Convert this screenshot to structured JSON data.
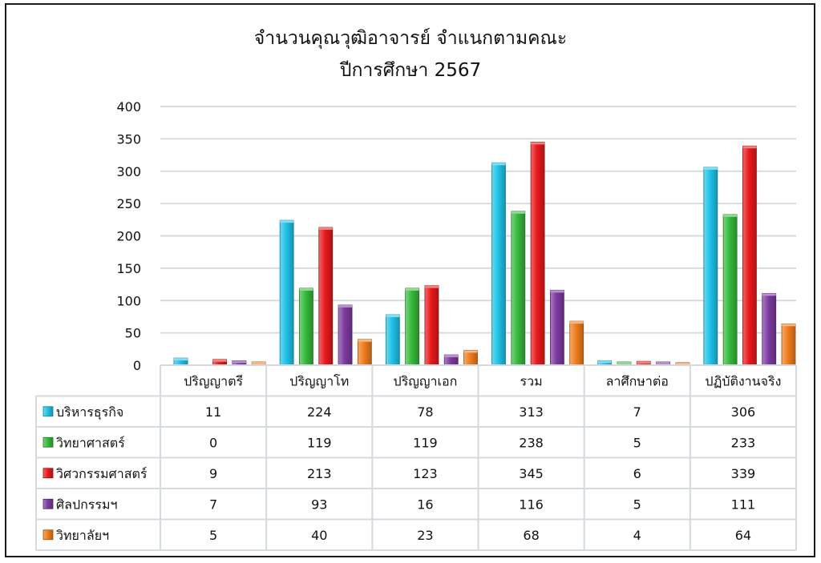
{
  "chart_data": {
    "type": "bar",
    "title": "จำนวนคุณวุฒิอาจารย์ จำแนกตามคณะ",
    "subtitle": "ปีการศึกษา 2567",
    "categories": [
      "ปริญญาตรี",
      "ปริญญาโท",
      "ปริญญาเอก",
      "รวม",
      "ลาศึกษาต่อ",
      "ปฏิบัติงานจริง"
    ],
    "ylim": [
      0,
      400
    ],
    "yticks": [
      0,
      50,
      100,
      150,
      200,
      250,
      300,
      350,
      400
    ],
    "grid": true,
    "legend": "data-table",
    "series": [
      {
        "name": "บริหารธุรกิจ",
        "color": "#1fc3e8",
        "values": [
          11,
          224,
          78,
          313,
          7,
          306
        ]
      },
      {
        "name": "วิทยาศาสตร์",
        "color": "#35b93b",
        "values": [
          0,
          119,
          119,
          238,
          5,
          233
        ]
      },
      {
        "name": "วิศวกรรมศาสตร์",
        "color": "#e8191c",
        "values": [
          9,
          213,
          123,
          345,
          6,
          339
        ]
      },
      {
        "name": "ศิลปกรรมฯ",
        "color": "#7d3aa0",
        "values": [
          7,
          93,
          16,
          116,
          5,
          111
        ]
      },
      {
        "name": "วิทยาลัยฯ",
        "color": "#f07c1c",
        "values": [
          5,
          40,
          23,
          68,
          4,
          64
        ]
      }
    ]
  }
}
